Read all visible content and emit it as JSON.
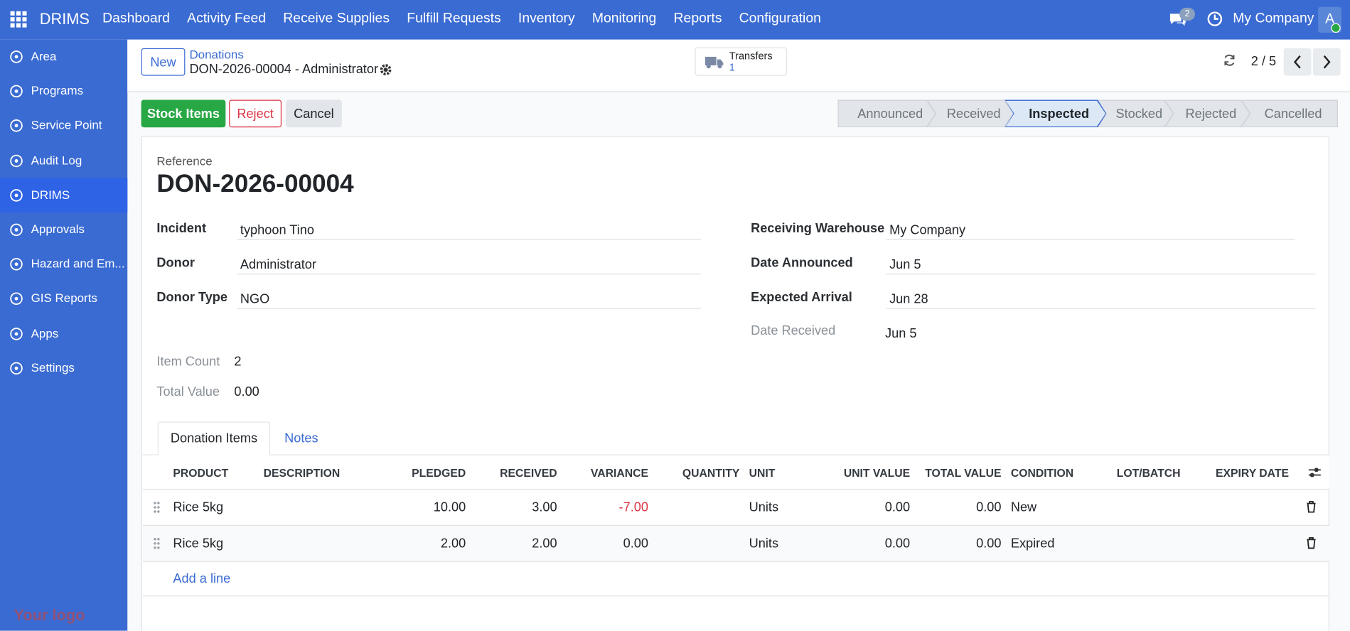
{
  "topbar": {
    "app": "DRIMS",
    "menu": [
      "Dashboard",
      "Activity Feed",
      "Receive Supplies",
      "Fulfill Requests",
      "Inventory",
      "Monitoring",
      "Reports",
      "Configuration"
    ],
    "chat_count": "2",
    "company": "My Company",
    "avatar": "A"
  },
  "sidebar": {
    "items": [
      "Area",
      "Programs",
      "Service Point",
      "Audit Log",
      "DRIMS",
      "Approvals",
      "Hazard and Em...",
      "GIS Reports",
      "Apps",
      "Settings"
    ],
    "logo": "Your logo"
  },
  "control_panel": {
    "new": "New",
    "breadcrumb": "Donations",
    "record": "DON-2026-00004 - Administrator",
    "transfers": "Transfers",
    "transfers_count": "1",
    "pager": "2 / 5"
  },
  "buttons": [
    "Stock Items",
    "Reject",
    "Cancel"
  ],
  "statusbar": [
    "Announced",
    "Received",
    "Inspected",
    "Stocked",
    "Rejected",
    "Cancelled"
  ],
  "form": {
    "reference_label": "Reference",
    "reference": "DON-2026-00004",
    "left": [
      [
        "Incident",
        "typhoon Tino"
      ],
      [
        "Donor",
        "Administrator"
      ],
      [
        "Donor Type",
        "NGO"
      ]
    ],
    "right": [
      [
        "Receiving Warehouse",
        "My Company"
      ],
      [
        "Date Announced",
        "Jun 5"
      ],
      [
        "Expected Arrival",
        "Jun 28"
      ],
      [
        "Date Received",
        "Jun 5"
      ]
    ],
    "summary": [
      [
        "Item Count",
        "2"
      ],
      [
        "Total Value",
        "0.00"
      ]
    ]
  },
  "tabs": [
    "Donation Items",
    "Notes"
  ],
  "table": {
    "headers": [
      "PRODUCT",
      "DESCRIPTION",
      "PLEDGED",
      "RECEIVED",
      "VARIANCE",
      "QUANTITY",
      "UNIT",
      "UNIT VALUE",
      "TOTAL VALUE",
      "CONDITION",
      "LOT/BATCH",
      "EXPIRY DATE"
    ],
    "rows": [
      [
        "Rice 5kg",
        "",
        "10.00",
        "3.00",
        "-7.00",
        "",
        "Units",
        "0.00",
        "0.00",
        "New",
        "",
        ""
      ],
      [
        "Rice 5kg",
        "",
        "2.00",
        "2.00",
        "0.00",
        "",
        "Units",
        "0.00",
        "0.00",
        "Expired",
        "",
        ""
      ]
    ],
    "add_line": "Add a line"
  }
}
